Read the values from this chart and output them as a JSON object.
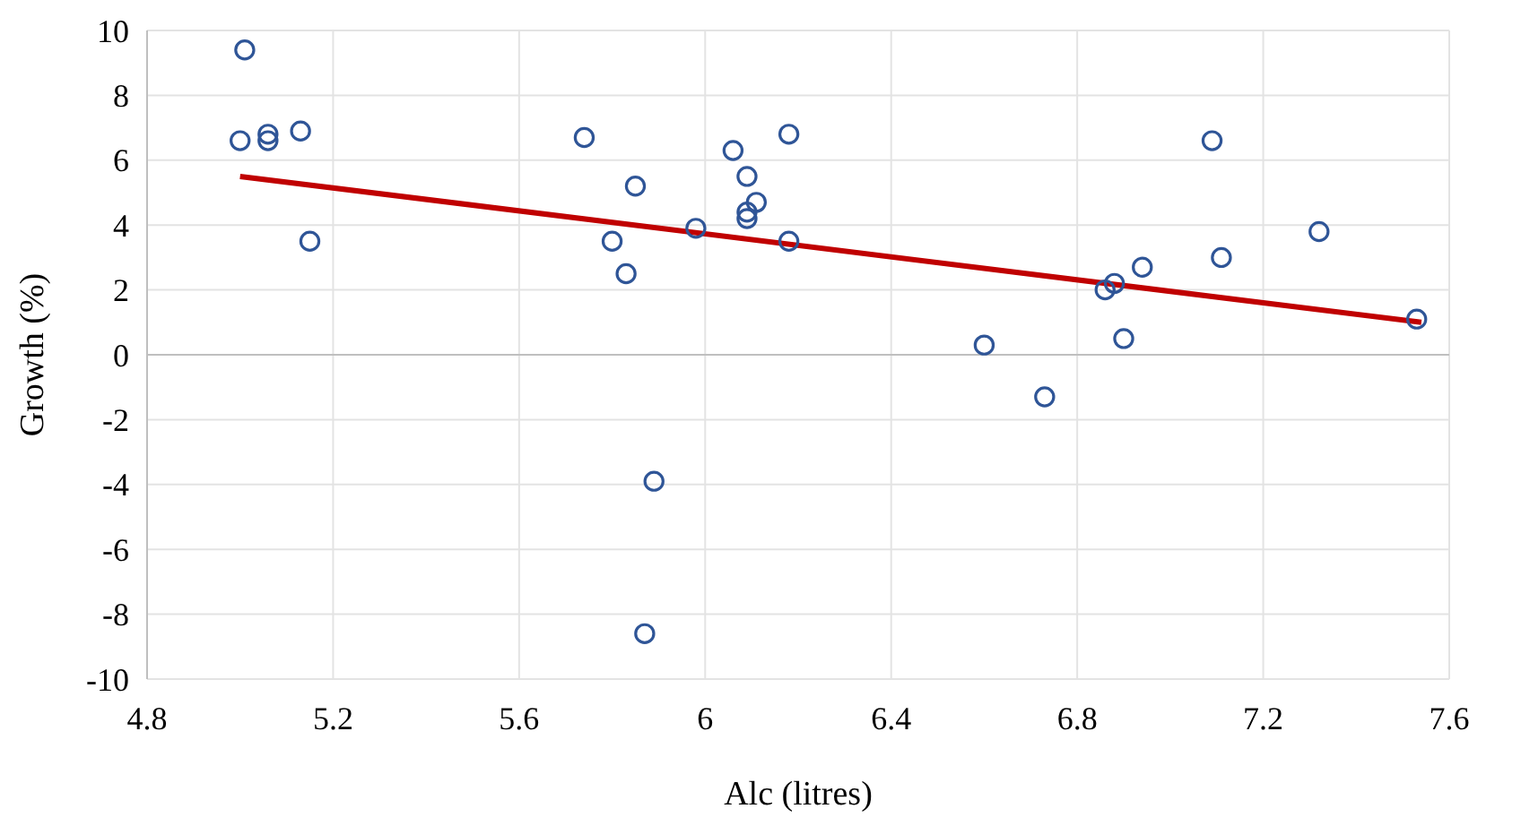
{
  "chart_data": {
    "type": "scatter",
    "xlabel": "Alc (litres)",
    "ylabel": "Growth (%)",
    "xlim": [
      4.8,
      7.6
    ],
    "xticks": [
      4.8,
      5.2,
      5.6,
      6,
      6.4,
      6.8,
      7.2,
      7.6
    ],
    "ylim": [
      -10,
      10
    ],
    "yticks": [
      -10,
      -8,
      -6,
      -4,
      -2,
      0,
      2,
      4,
      6,
      8,
      10
    ],
    "grid": true,
    "series": [
      {
        "marker": "circle",
        "color": "#2f5597",
        "x": [
          5.0,
          5.01,
          5.06,
          5.06,
          5.13,
          5.15,
          5.74,
          5.8,
          5.83,
          5.85,
          5.87,
          5.89,
          5.98,
          6.06,
          6.09,
          6.09,
          6.09,
          6.11,
          6.18,
          6.18,
          6.6,
          6.73,
          6.86,
          6.88,
          6.9,
          6.94,
          7.09,
          7.11,
          7.32,
          7.53
        ],
        "values": [
          6.6,
          9.4,
          6.8,
          6.6,
          6.9,
          3.5,
          6.7,
          3.5,
          2.5,
          5.2,
          -8.6,
          -3.9,
          3.9,
          6.3,
          5.5,
          4.4,
          4.2,
          4.7,
          3.5,
          6.8,
          0.3,
          -1.3,
          2.0,
          2.2,
          0.5,
          2.7,
          6.6,
          3.0,
          3.8,
          1.1
        ]
      },
      {
        "type": "line",
        "color": "#c00000",
        "x": [
          5.0,
          7.54
        ],
        "values": [
          5.5,
          1.0
        ]
      }
    ]
  }
}
